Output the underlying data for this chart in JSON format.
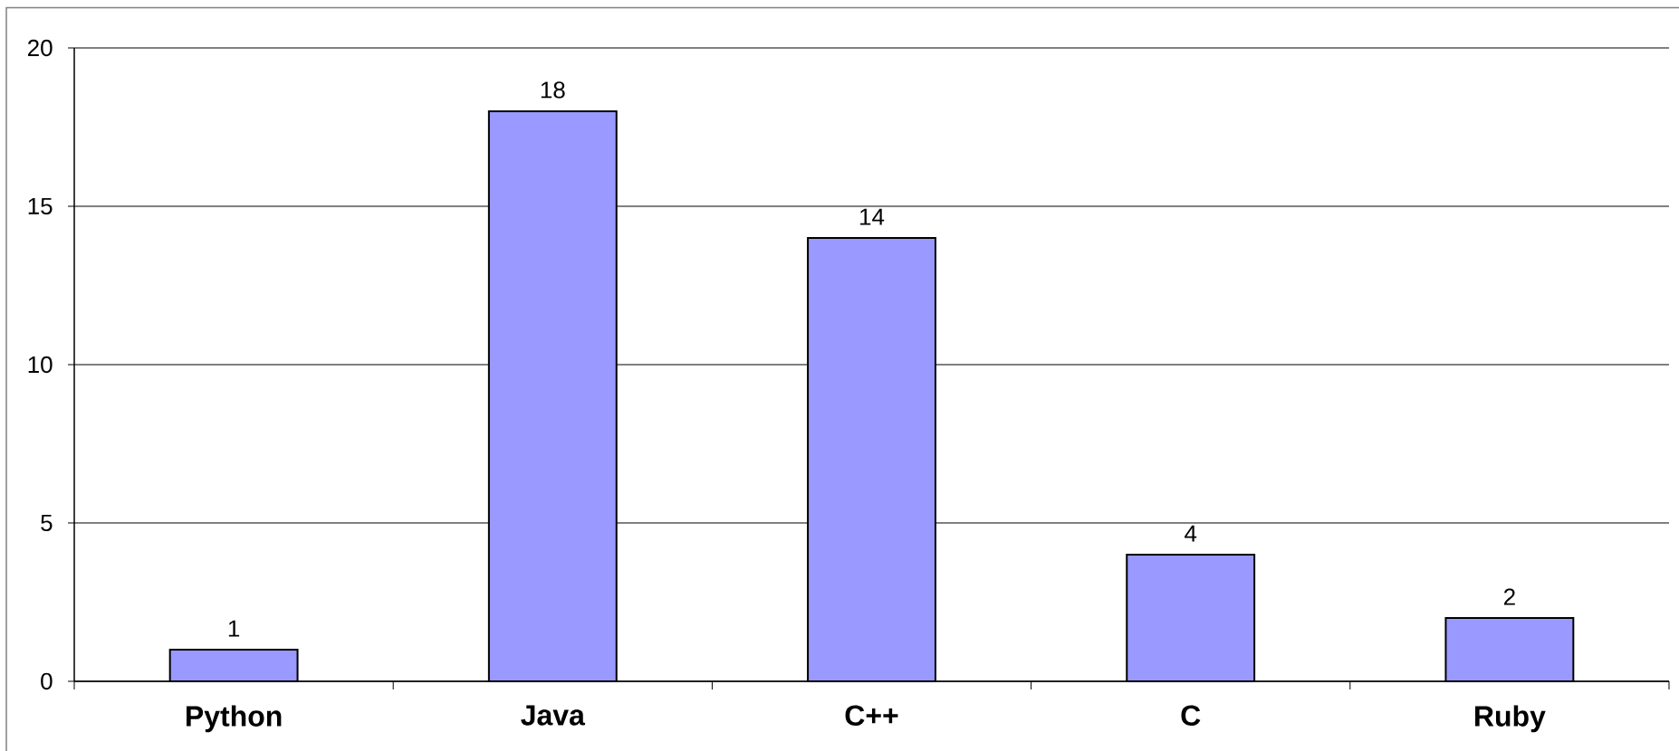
{
  "chart_data": {
    "type": "bar",
    "categories": [
      "Python",
      "Java",
      "C++",
      "C",
      "Ruby"
    ],
    "values": [
      1,
      18,
      14,
      4,
      2
    ],
    "color": "#9999ff",
    "ylim": [
      0,
      20
    ],
    "yticks": [
      0,
      5,
      10,
      15,
      20
    ],
    "grid": "y",
    "data_labels": true
  }
}
